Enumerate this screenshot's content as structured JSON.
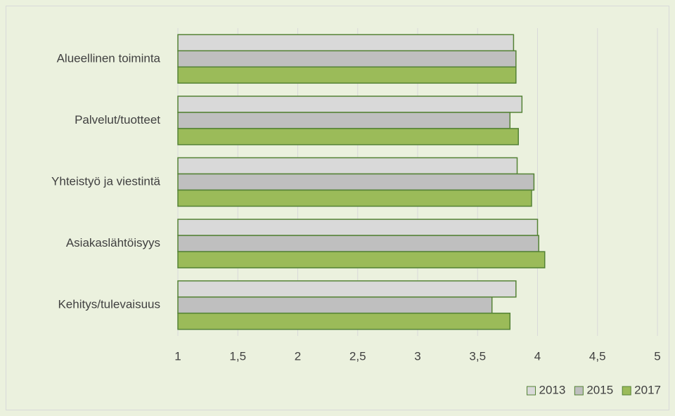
{
  "chart_data": {
    "type": "hbar",
    "categories": [
      "Alueellinen toiminta",
      "Palvelut/tuotteet",
      "Yhteistyö ja viestintä",
      "Asiakaslähtöisyys",
      "Kehitys/tulevaisuus"
    ],
    "series": [
      {
        "name": "2013",
        "color": "#d9d9d9",
        "values": [
          3.8,
          3.87,
          3.83,
          4.0,
          3.82
        ]
      },
      {
        "name": "2015",
        "color": "#bfbfbf",
        "values": [
          3.82,
          3.77,
          3.97,
          4.01,
          3.62
        ]
      },
      {
        "name": "2017",
        "color": "#9bbb59",
        "values": [
          3.82,
          3.84,
          3.95,
          4.06,
          3.77
        ]
      }
    ],
    "xlim": [
      1,
      5
    ],
    "xticks": [
      1,
      {
        "value": 1.5,
        "label": "1,5"
      },
      2,
      {
        "value": 2.5,
        "label": "2,5"
      },
      3,
      {
        "value": 3.5,
        "label": "3,5"
      },
      4,
      {
        "value": 4.5,
        "label": "4,5"
      },
      5
    ],
    "grid": true,
    "legend": "bottom-right"
  }
}
